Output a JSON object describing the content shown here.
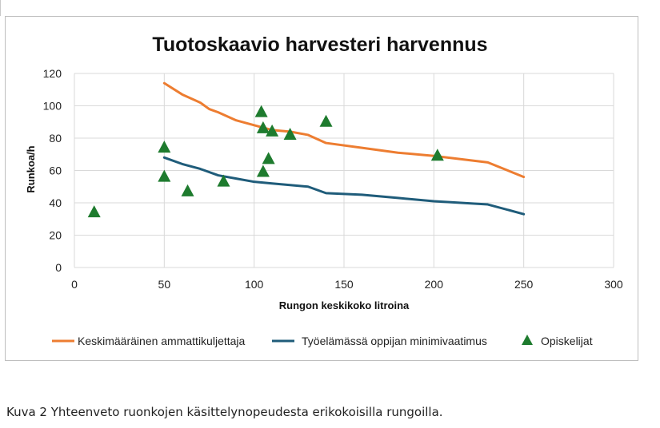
{
  "caption": "Kuva 2 Yhteenveto ruonkojen käsittelynopeudesta erikokoisilla rungoilla.",
  "chart_data": {
    "type": "line",
    "title": "Tuotoskaavio harvesteri harvennus",
    "xlabel": "Rungon keskikoko litroina",
    "ylabel": "Runkoa/h",
    "xlim": [
      0,
      300
    ],
    "ylim": [
      0,
      120
    ],
    "xticks": [
      0,
      50,
      100,
      150,
      200,
      250,
      300
    ],
    "yticks": [
      0,
      20,
      40,
      60,
      80,
      100,
      120
    ],
    "grid": true,
    "legend_position": "bottom",
    "series": [
      {
        "name": "Keskimääräinen ammattikuljettaja",
        "kind": "line",
        "color": "#ED7D31",
        "x": [
          50,
          60,
          70,
          75,
          80,
          90,
          100,
          110,
          120,
          130,
          140,
          160,
          180,
          200,
          230,
          250
        ],
        "y": [
          114,
          107,
          102,
          98,
          96,
          91,
          88,
          85,
          84,
          82,
          77,
          74,
          71,
          69,
          65,
          56
        ]
      },
      {
        "name": "Työelämässä oppijan minimivaatimus",
        "kind": "line",
        "color": "#1F5C7A",
        "x": [
          50,
          60,
          70,
          80,
          90,
          100,
          110,
          120,
          130,
          140,
          160,
          180,
          200,
          230,
          250
        ],
        "y": [
          68,
          64,
          61,
          57,
          55,
          53,
          52,
          51,
          50,
          46,
          45,
          43,
          41,
          39,
          33
        ]
      },
      {
        "name": "Opiskelijat",
        "kind": "scatter",
        "marker": "triangle",
        "color": "#1E7B2E",
        "x": [
          11,
          50,
          50,
          63,
          83,
          104,
          105,
          105,
          108,
          110,
          120,
          140,
          202
        ],
        "y": [
          34,
          74,
          56,
          47,
          53,
          96,
          86,
          59,
          67,
          84,
          82,
          90,
          69
        ]
      }
    ]
  }
}
